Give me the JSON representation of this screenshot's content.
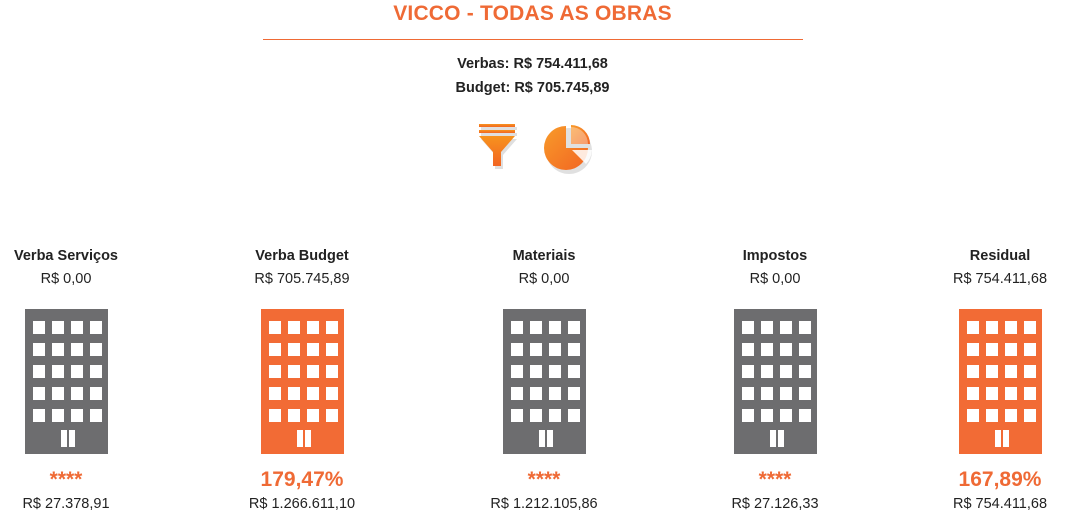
{
  "header": {
    "title": "VICCO - TODAS AS OBRAS",
    "verbas": "Verbas: R$ 754.411,68",
    "budget": "Budget: R$ 705.745,89"
  },
  "icons": [
    {
      "name": "filter-icon",
      "color": "#f47a20"
    },
    {
      "name": "pie-chart-icon",
      "color": "#f47a20"
    }
  ],
  "colors": {
    "accent": "#ef6a35",
    "gray": "#6d6d6f",
    "orange_building": "#f26b35"
  },
  "columns": [
    {
      "name": "Verba Serviços",
      "value": "R$ 0,00",
      "pct": "****",
      "amount": "R$ 27.378,91",
      "color": "#6d6d6f",
      "id": "verba-servicos"
    },
    {
      "name": "Verba Budget",
      "value": "R$ 705.745,89",
      "pct": "179,47%",
      "amount": "R$ 1.266.611,10",
      "color": "#f26b35",
      "id": "verba-budget"
    },
    {
      "name": "Materiais",
      "value": "R$ 0,00",
      "pct": "****",
      "amount": "R$ 1.212.105,86",
      "color": "#6d6d6f",
      "id": "materiais"
    },
    {
      "name": "Impostos",
      "value": "R$ 0,00",
      "pct": "****",
      "amount": "R$ 27.126,33",
      "color": "#6d6d6f",
      "id": "impostos"
    },
    {
      "name": "Residual",
      "value": "R$ 754.411,68",
      "pct": "167,89%",
      "amount": "R$ 754.411,68",
      "color": "#f26b35",
      "id": "residual"
    }
  ]
}
